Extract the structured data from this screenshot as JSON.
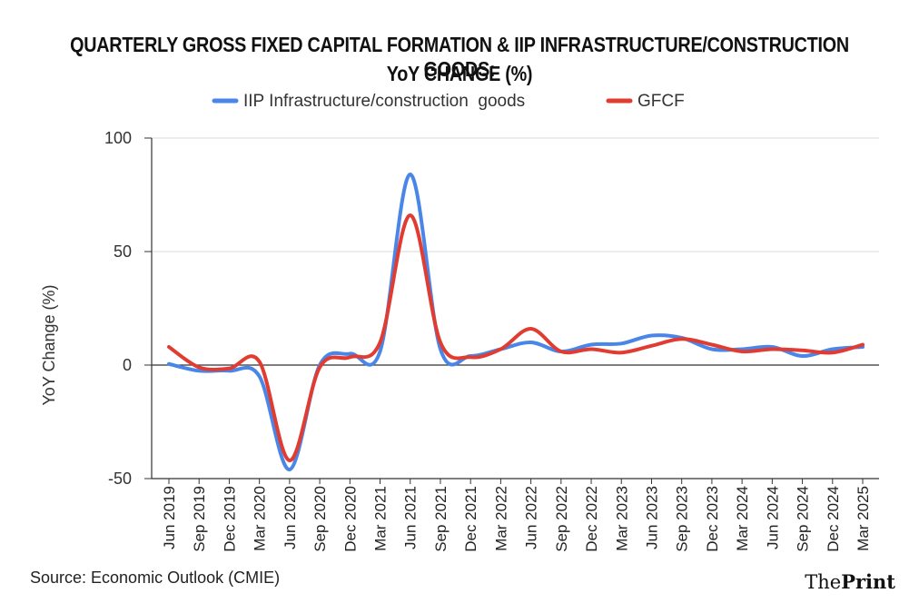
{
  "title_line1": "QUARTERLY GROSS FIXED CAPITAL FORMATION & IIP INFRASTRUCTURE/CONSTRUCTION GOODS:",
  "title_line2": "YoY CHANGE (%)",
  "source": "Source: Economic Outlook (CMIE)",
  "brand_prefix": "The",
  "brand_suffix": "Print",
  "chart_data": {
    "type": "line",
    "ylabel": "YoY Change (%)",
    "xlabel": "",
    "ylim": [
      -50,
      100
    ],
    "yticks": [
      -50,
      0,
      50,
      100
    ],
    "grid": true,
    "legend_position": "top-center",
    "categories": [
      "Jun 2019",
      "Sep 2019",
      "Dec 2019",
      "Mar 2020",
      "Jun 2020",
      "Sep 2020",
      "Dec 2020",
      "Mar 2021",
      "Jun 2021",
      "Sep 2021",
      "Dec 2021",
      "Mar 2022",
      "Jun 2022",
      "Sep 2022",
      "Dec 2022",
      "Mar 2023",
      "Jun 2023",
      "Sep 2023",
      "Dec 2023",
      "Mar 2024",
      "Jun 2024",
      "Sep 2024",
      "Dec 2024",
      "Mar 2025"
    ],
    "series": [
      {
        "name": "IIP Infrastructure/construction  goods",
        "color": "#4a86e8",
        "values": [
          0.5,
          -2.5,
          -2.5,
          -5,
          -46,
          0,
          5,
          6,
          84,
          7,
          4,
          7,
          10,
          6,
          9,
          9.5,
          13,
          12,
          7,
          7,
          8,
          4,
          7,
          8
        ]
      },
      {
        "name": "GFCF",
        "color": "#e03c31",
        "values": [
          8,
          -1,
          -1.5,
          1.5,
          -42,
          -1,
          3.5,
          10,
          66,
          10,
          3.5,
          7,
          16,
          6,
          7,
          5.5,
          8.5,
          11.5,
          9,
          6,
          7,
          6.5,
          5.5,
          9
        ]
      }
    ]
  }
}
